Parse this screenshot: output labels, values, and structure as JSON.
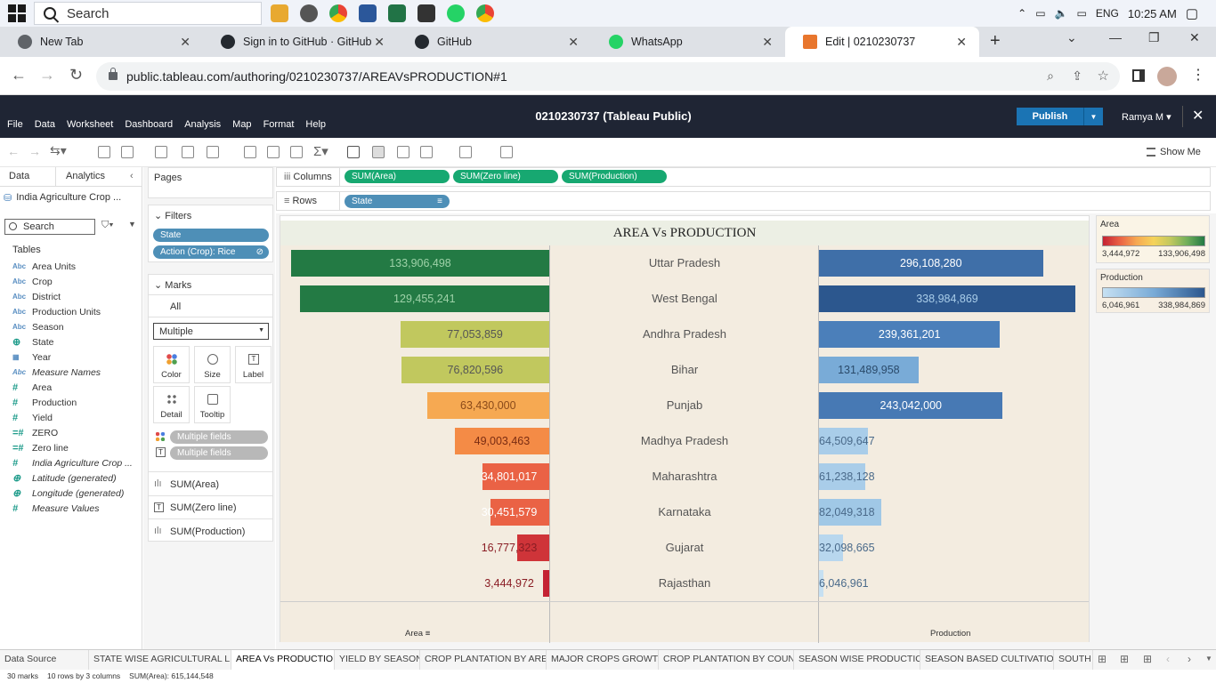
{
  "taskbar": {
    "search_placeholder": "Search",
    "language": "ENG",
    "time": "10:25 AM"
  },
  "browser": {
    "tabs": [
      {
        "label": "New Tab",
        "icon": "chrome-icon",
        "color": "#5f6368"
      },
      {
        "label": "Sign in to GitHub · GitHub",
        "icon": "github-icon",
        "color": "#24292f"
      },
      {
        "label": "GitHub",
        "icon": "github-icon",
        "color": "#24292f"
      },
      {
        "label": "WhatsApp",
        "icon": "whatsapp-icon",
        "color": "#25d366"
      },
      {
        "label": "Edit | 0210230737",
        "icon": "tableau-icon",
        "color": "#e8762d"
      }
    ],
    "url": "public.tableau.com/authoring/0210230737/AREAVsPRODUCTION#1"
  },
  "tableau": {
    "menu": [
      "File",
      "Data",
      "Worksheet",
      "Dashboard",
      "Analysis",
      "Map",
      "Format",
      "Help"
    ],
    "workbook_title": "0210230737 (Tableau Public)",
    "publish_label": "Publish",
    "user": "Ramya M",
    "show_me": "Show Me"
  },
  "data_pane": {
    "tab_data": "Data",
    "tab_analytics": "Analytics",
    "datasource": "India Agriculture Crop ...",
    "search_placeholder": "Search",
    "tables_label": "Tables",
    "fields": [
      {
        "name": "Area Units",
        "type": "Abc",
        "kind": "dim",
        "italic": false
      },
      {
        "name": "Crop",
        "type": "Abc",
        "kind": "dim",
        "italic": false
      },
      {
        "name": "District",
        "type": "Abc",
        "kind": "dim",
        "italic": false
      },
      {
        "name": "Production Units",
        "type": "Abc",
        "kind": "dim",
        "italic": false
      },
      {
        "name": "Season",
        "type": "Abc",
        "kind": "dim",
        "italic": false
      },
      {
        "name": "State",
        "type": "⊕",
        "kind": "geo",
        "italic": false
      },
      {
        "name": "Year",
        "type": "▦",
        "kind": "dim",
        "italic": false
      },
      {
        "name": "Measure Names",
        "type": "Abc",
        "kind": "dim",
        "italic": true
      },
      {
        "name": "Area",
        "type": "#",
        "kind": "m",
        "italic": false
      },
      {
        "name": "Production",
        "type": "#",
        "kind": "m",
        "italic": false
      },
      {
        "name": "Yield",
        "type": "#",
        "kind": "m",
        "italic": false
      },
      {
        "name": "ZERO",
        "type": "=#",
        "kind": "m",
        "italic": false
      },
      {
        "name": "Zero line",
        "type": "=#",
        "kind": "m",
        "italic": false
      },
      {
        "name": "India Agriculture Crop ...",
        "type": "#",
        "kind": "m",
        "italic": true
      },
      {
        "name": "Latitude (generated)",
        "type": "⊕",
        "kind": "g",
        "italic": true
      },
      {
        "name": "Longitude (generated)",
        "type": "⊕",
        "kind": "g",
        "italic": true
      },
      {
        "name": "Measure Values",
        "type": "#",
        "kind": "m",
        "italic": true
      }
    ]
  },
  "cards": {
    "pages_label": "Pages",
    "filters_label": "Filters",
    "filters": [
      "State",
      "Action (Crop): Rice"
    ],
    "marks_label": "Marks",
    "marks_all": "All",
    "mark_type": "Multiple",
    "mark_buttons": [
      "Color",
      "Size",
      "Label",
      "Detail",
      "Tooltip"
    ],
    "mark_fields": [
      "Multiple fields",
      "Multiple fields"
    ],
    "mark_tabs": [
      "SUM(Area)",
      "SUM(Zero line)",
      "SUM(Production)"
    ]
  },
  "shelves": {
    "columns_label": "Columns",
    "columns": [
      "SUM(Area)",
      "SUM(Zero line)",
      "SUM(Production)"
    ],
    "rows_label": "Rows",
    "rows": [
      "State"
    ]
  },
  "legends": {
    "area": {
      "title": "Area",
      "min": "3,444,972",
      "max": "133,906,498"
    },
    "production": {
      "title": "Production",
      "min": "6,046,961",
      "max": "338,984,869"
    }
  },
  "chart_data": {
    "type": "bar",
    "title": "AREA Vs PRODUCTION",
    "categories": [
      "Uttar Pradesh",
      "West Bengal",
      "Andhra Pradesh",
      "Bihar",
      "Punjab",
      "Madhya Pradesh",
      "Maharashtra",
      "Karnataka",
      "Gujarat",
      "Rajasthan"
    ],
    "series": [
      {
        "name": "Area",
        "values": [
          133906498,
          129455241,
          77053859,
          76820596,
          63430000,
          49003463,
          34801017,
          30451579,
          16777323,
          3444972
        ],
        "labels": [
          "133,906,498",
          "129,455,241",
          "77,053,859",
          "76,820,596",
          "63,430,000",
          "49,003,463",
          "34,801,017",
          "30,451,579",
          "16,777,323",
          "3,444,972"
        ]
      },
      {
        "name": "Production",
        "values": [
          296108280,
          338984869,
          239361201,
          131489958,
          243042000,
          64509647,
          61238128,
          82049318,
          32098665,
          6046961
        ],
        "labels": [
          "296,108,280",
          "338,984,869",
          "239,361,201",
          "131,489,958",
          "243,042,000",
          "64,509,647",
          "61,238,128",
          "82,049,318",
          "32,098,665",
          "6,046,961"
        ]
      }
    ],
    "xlabel_left": "Area",
    "xlabel_right": "Production",
    "area_colors": [
      "#237a44",
      "#237a44",
      "#c1c85e",
      "#c1c85e",
      "#f6a952",
      "#f48b46",
      "#ea6245",
      "#ea6245",
      "#cf3439",
      "#c42233"
    ],
    "production_colors": [
      "#3f6fa8",
      "#2c578e",
      "#4b7fba",
      "#79abd7",
      "#4779b4",
      "#a9cde9",
      "#a9cde9",
      "#a0c8e6",
      "#b8d7ee",
      "#c6e0f2"
    ]
  },
  "sheet_tabs": [
    "Data Source",
    "STATE WISE AGRICULTURAL L...",
    "AREA Vs PRODUCTION",
    "YIELD BY SEASON",
    "CROP PLANTATION BY AREA",
    "MAJOR CROPS GROWTH",
    "CROP PLANTATION BY COUNT",
    "SEASON WISE PRODUCTION",
    "SEASON BASED CULTIVATION",
    "SOUTH"
  ],
  "status": [
    "30 marks",
    "10 rows by 3 columns",
    "SUM(Area): 615,144,548"
  ]
}
